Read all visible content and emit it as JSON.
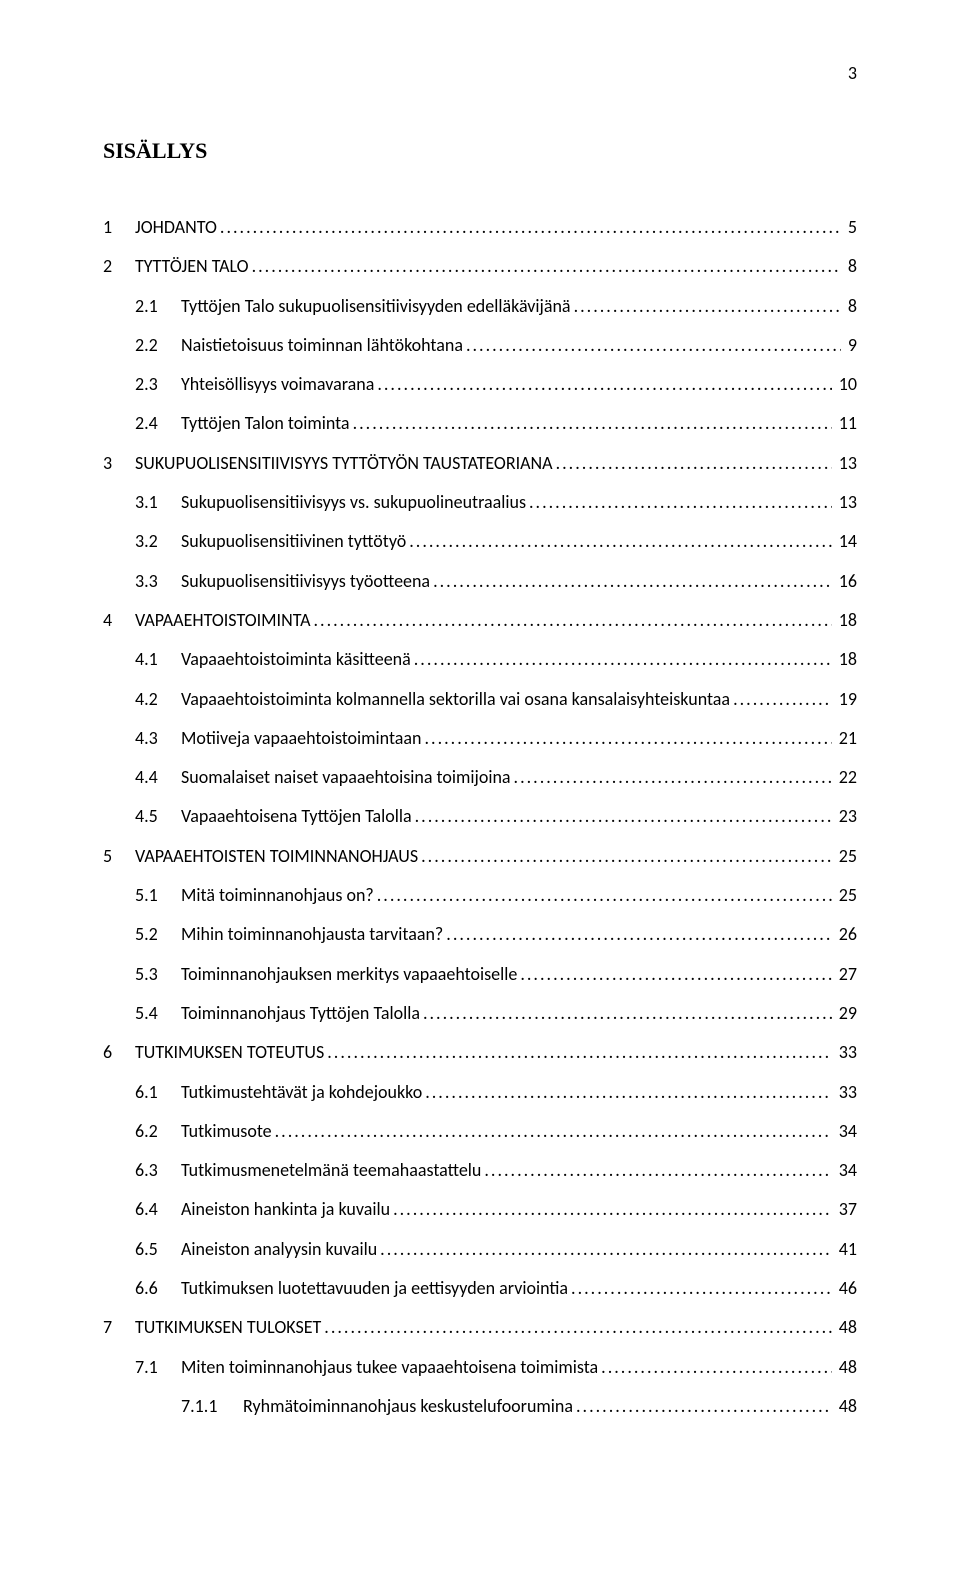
{
  "page_number": "3",
  "doc_title": "SISÄLLYS",
  "dot_leader": "........................................................................................................................................................................................................",
  "toc": [
    {
      "level": 1,
      "num": "1",
      "title": "JOHDANTO",
      "page": "5"
    },
    {
      "level": 1,
      "num": "2",
      "title": "TYTTÖJEN TALO",
      "page": "8"
    },
    {
      "level": 2,
      "num": "2.1",
      "title": "Tyttöjen Talo sukupuolisensitiivisyyden edelläkävijänä",
      "page": "8"
    },
    {
      "level": 2,
      "num": "2.2",
      "title": "Naistietoisuus toiminnan lähtökohtana",
      "page": "9"
    },
    {
      "level": 2,
      "num": "2.3",
      "title": "Yhteisöllisyys voimavarana",
      "page": "10"
    },
    {
      "level": 2,
      "num": "2.4",
      "title": "Tyttöjen Talon toiminta",
      "page": "11"
    },
    {
      "level": 1,
      "num": "3",
      "title": "SUKUPUOLISENSITIIVISYYS TYTTÖTYÖN TAUSTATEORIANA",
      "page": "13"
    },
    {
      "level": 2,
      "num": "3.1",
      "title": "Sukupuolisensitiivisyys vs. sukupuolineutraalius",
      "page": "13"
    },
    {
      "level": 2,
      "num": "3.2",
      "title": "Sukupuolisensitiivinen tyttötyö",
      "page": "14"
    },
    {
      "level": 2,
      "num": "3.3",
      "title": "Sukupuolisensitiivisyys työotteena",
      "page": "16"
    },
    {
      "level": 1,
      "num": "4",
      "title": "VAPAAEHTOISTOIMINTA",
      "page": "18"
    },
    {
      "level": 2,
      "num": "4.1",
      "title": "Vapaaehtoistoiminta käsitteenä",
      "page": "18"
    },
    {
      "level": 2,
      "num": "4.2",
      "title": "Vapaaehtoistoiminta kolmannella sektorilla vai osana kansalaisyhteiskuntaa",
      "page": "19"
    },
    {
      "level": 2,
      "num": "4.3",
      "title": "Motiiveja vapaaehtoistoimintaan",
      "page": "21"
    },
    {
      "level": 2,
      "num": "4.4",
      "title": "Suomalaiset naiset vapaaehtoisina toimijoina",
      "page": "22"
    },
    {
      "level": 2,
      "num": "4.5",
      "title": "Vapaaehtoisena Tyttöjen Talolla",
      "page": "23"
    },
    {
      "level": 1,
      "num": "5",
      "title": "VAPAAEHTOISTEN TOIMINNANOHJAUS",
      "page": "25"
    },
    {
      "level": 2,
      "num": "5.1",
      "title": "Mitä toiminnanohjaus on?",
      "page": "25"
    },
    {
      "level": 2,
      "num": "5.2",
      "title": "Mihin toiminnanohjausta tarvitaan?",
      "page": "26"
    },
    {
      "level": 2,
      "num": "5.3",
      "title": "Toiminnanohjauksen merkitys vapaaehtoiselle",
      "page": "27"
    },
    {
      "level": 2,
      "num": "5.4",
      "title": "Toiminnanohjaus Tyttöjen Talolla",
      "page": "29"
    },
    {
      "level": 1,
      "num": "6",
      "title": "TUTKIMUKSEN TOTEUTUS",
      "page": "33"
    },
    {
      "level": 2,
      "num": "6.1",
      "title": "Tutkimustehtävät ja kohdejoukko",
      "page": "33"
    },
    {
      "level": 2,
      "num": "6.2",
      "title": "Tutkimusote",
      "page": "34"
    },
    {
      "level": 2,
      "num": "6.3",
      "title": "Tutkimusmenetelmänä teemahaastattelu",
      "page": "34"
    },
    {
      "level": 2,
      "num": "6.4",
      "title": "Aineiston hankinta ja kuvailu",
      "page": "37"
    },
    {
      "level": 2,
      "num": "6.5",
      "title": "Aineiston analyysin kuvailu",
      "page": "41"
    },
    {
      "level": 2,
      "num": "6.6",
      "title": "Tutkimuksen luotettavuuden ja eettisyyden arviointia",
      "page": "46"
    },
    {
      "level": 1,
      "num": "7",
      "title": "TUTKIMUKSEN TULOKSET",
      "page": "48"
    },
    {
      "level": 2,
      "num": "7.1",
      "title": "Miten toiminnanohjaus tukee vapaaehtoisena toimimista",
      "page": "48"
    },
    {
      "level": 3,
      "num": "7.1.1",
      "title": "Ryhmätoiminnanohjaus keskustelufoorumina",
      "page": "48"
    }
  ]
}
